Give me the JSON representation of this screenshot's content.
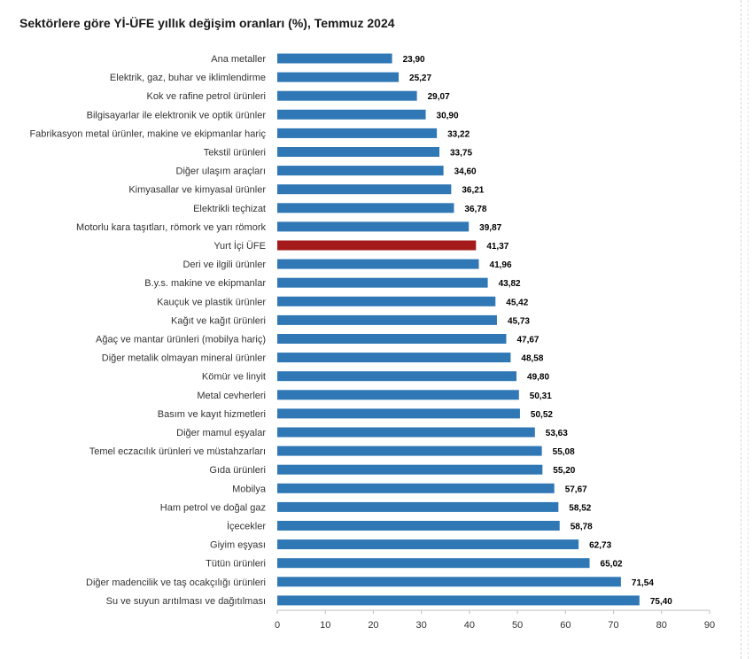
{
  "title": "Sektörlere göre Yİ-ÜFE yıllık değişim oranları (%), Temmuz 2024",
  "colors": {
    "bar": "#2f77b5",
    "highlight": "#a51b1b",
    "axis": "#bfbfbf"
  },
  "chart_data": {
    "type": "bar",
    "orientation": "horizontal",
    "title": "Sektörlere göre Yİ-ÜFE yıllık değişim oranları (%), Temmuz 2024",
    "xlabel": "",
    "ylabel": "",
    "xlim": [
      0,
      90
    ],
    "xticks": [
      0,
      10,
      20,
      30,
      40,
      50,
      60,
      70,
      80,
      90
    ],
    "grid": false,
    "highlight_category": "Yurt İçi ÜFE",
    "categories": [
      "Ana metaller",
      "Elektrik, gaz, buhar ve iklimlendirme",
      "Kok ve rafine petrol ürünleri",
      "Bilgisayarlar ile elektronik ve optik ürünler",
      "Fabrikasyon metal ürünler, makine ve ekipmanlar hariç",
      "Tekstil ürünleri",
      "Diğer ulaşım araçları",
      "Kimyasallar ve kimyasal ürünler",
      "Elektrikli teçhizat",
      "Motorlu kara taşıtları, römork ve yarı römork",
      "Yurt İçi ÜFE",
      "Deri ve ilgili ürünler",
      "B.y.s. makine ve ekipmanlar",
      "Kauçuk ve plastik ürünler",
      "Kağıt ve kağıt ürünleri",
      "Ağaç ve mantar ürünleri (mobilya hariç)",
      "Diğer metalik olmayan mineral ürünler",
      "Kömür ve linyit",
      "Metal cevherleri",
      "Basım ve kayıt hizmetleri",
      "Diğer mamul eşyalar",
      "Temel eczacılık ürünleri ve müstahzarları",
      "Gıda ürünleri",
      "Mobilya",
      "Ham petrol ve doğal gaz",
      "İçecekler",
      "Giyim eşyası",
      "Tütün ürünleri",
      "Diğer madencilik ve taş ocakçılığı ürünleri",
      "Su ve suyun arıtılması ve dağıtılması"
    ],
    "values": [
      23.9,
      25.27,
      29.07,
      30.9,
      33.22,
      33.75,
      34.6,
      36.21,
      36.78,
      39.87,
      41.37,
      41.96,
      43.82,
      45.42,
      45.73,
      47.67,
      48.58,
      49.8,
      50.31,
      50.52,
      53.63,
      55.08,
      55.2,
      57.67,
      58.52,
      58.78,
      62.73,
      65.02,
      71.54,
      75.4
    ],
    "value_labels": [
      "23,90",
      "25,27",
      "29,07",
      "30,90",
      "33,22",
      "33,75",
      "34,60",
      "36,21",
      "36,78",
      "39,87",
      "41,37",
      "41,96",
      "43,82",
      "45,42",
      "45,73",
      "47,67",
      "48,58",
      "49,80",
      "50,31",
      "50,52",
      "53,63",
      "55,08",
      "55,20",
      "57,67",
      "58,52",
      "58,78",
      "62,73",
      "65,02",
      "71,54",
      "75,40"
    ]
  }
}
